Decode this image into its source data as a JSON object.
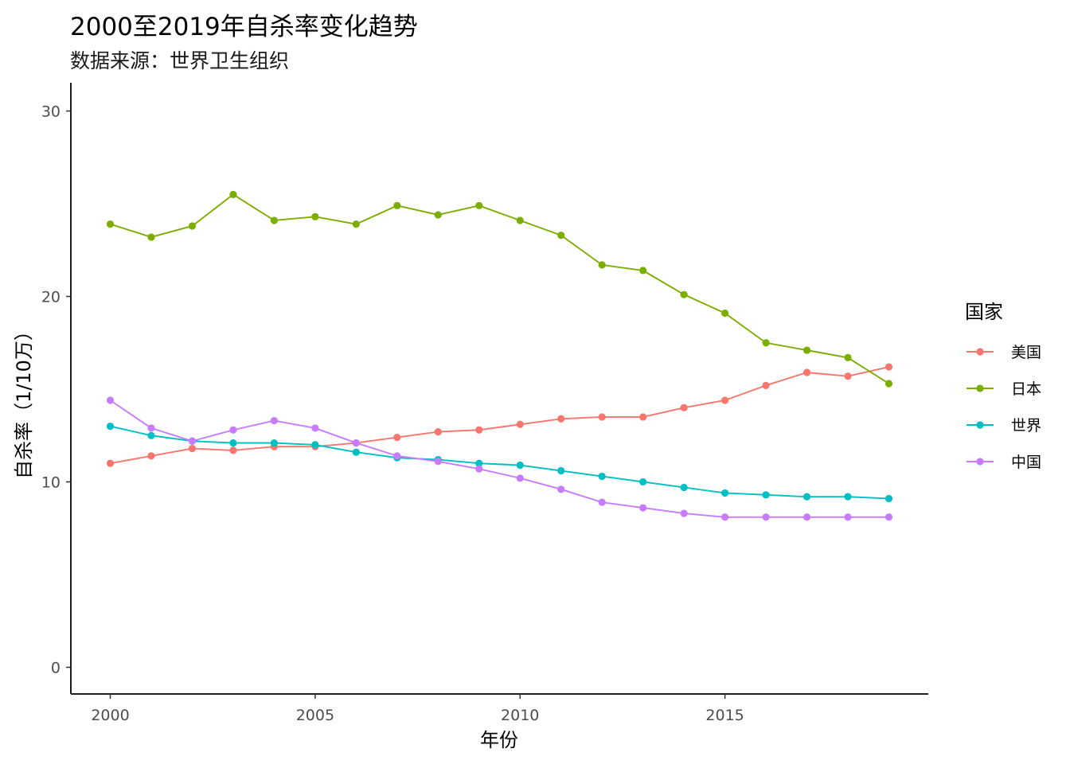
{
  "chart_data": {
    "type": "line",
    "title": "2000至2019年自杀率变化趋势",
    "subtitle": "数据来源：世界卫生组织",
    "xlabel": "年份",
    "ylabel": "自杀率（1/10万）",
    "x": [
      2000,
      2001,
      2002,
      2003,
      2004,
      2005,
      2006,
      2007,
      2008,
      2009,
      2010,
      2011,
      2012,
      2013,
      2014,
      2015,
      2016,
      2017,
      2018,
      2019
    ],
    "xlim": [
      2000,
      2019
    ],
    "ylim": [
      0,
      30
    ],
    "x_ticks": [
      2000,
      2005,
      2010,
      2015
    ],
    "y_ticks": [
      0,
      10,
      20,
      30
    ],
    "x_tick_labels": [
      "2000",
      "2005",
      "2010",
      "2015"
    ],
    "y_tick_labels": [
      "0",
      "10",
      "20",
      "30"
    ],
    "grid": false,
    "legend_title": "国家",
    "legend_position": "right",
    "series": [
      {
        "name": "美国",
        "color": "#F8766D",
        "values": [
          11.0,
          11.4,
          11.8,
          11.7,
          11.9,
          11.9,
          12.1,
          12.4,
          12.7,
          12.8,
          13.1,
          13.4,
          13.5,
          13.5,
          14.0,
          14.4,
          15.2,
          15.9,
          15.7,
          16.2
        ]
      },
      {
        "name": "日本",
        "color": "#7CAE00",
        "values": [
          23.9,
          23.2,
          23.8,
          25.5,
          24.1,
          24.3,
          23.9,
          24.9,
          24.4,
          24.9,
          24.1,
          23.3,
          21.7,
          21.4,
          20.1,
          19.1,
          17.5,
          17.1,
          16.7,
          15.3
        ]
      },
      {
        "name": "世界",
        "color": "#00BFC4",
        "values": [
          13.0,
          12.5,
          12.2,
          12.1,
          12.1,
          12.0,
          11.6,
          11.3,
          11.2,
          11.0,
          10.9,
          10.6,
          10.3,
          10.0,
          9.7,
          9.4,
          9.3,
          9.2,
          9.2,
          9.1
        ]
      },
      {
        "name": "中国",
        "color": "#C77CFF",
        "values": [
          14.4,
          12.9,
          12.2,
          12.8,
          13.3,
          12.9,
          12.1,
          11.4,
          11.1,
          10.7,
          10.2,
          9.6,
          8.9,
          8.6,
          8.3,
          8.1,
          8.1,
          8.1,
          8.1,
          8.1
        ]
      }
    ]
  }
}
